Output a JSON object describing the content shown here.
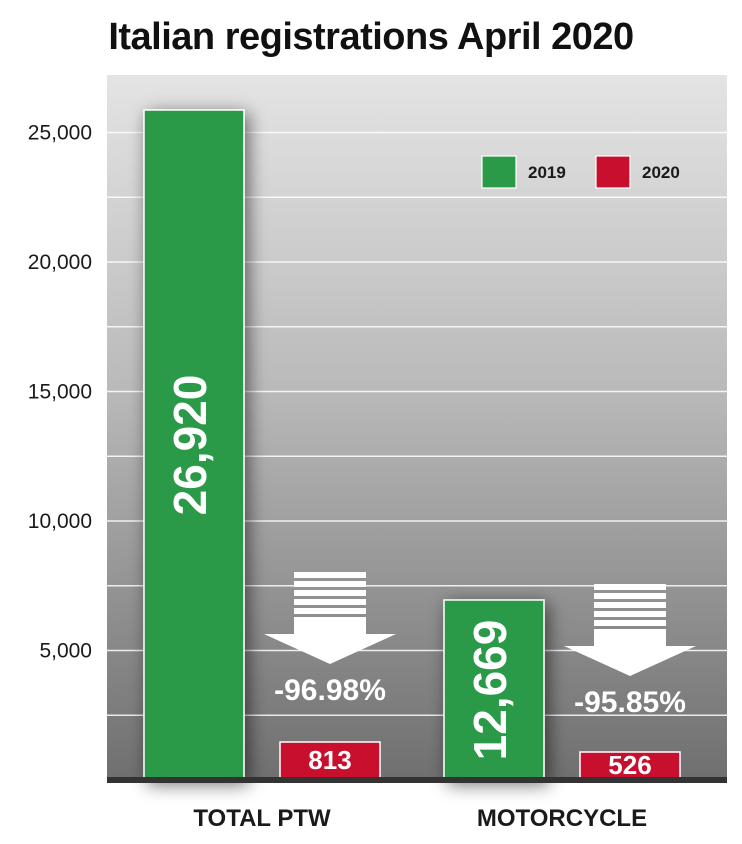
{
  "chart_data": {
    "type": "bar",
    "title": "Italian registrations April 2020",
    "categories": [
      "TOTAL PTW",
      "MOTORCYCLE"
    ],
    "series": [
      {
        "name": "2019",
        "color": "#2a9a49",
        "values": [
          26920,
          12669
        ],
        "labels": [
          "26,920",
          "12,669"
        ]
      },
      {
        "name": "2020",
        "color": "#c8102e",
        "values": [
          813,
          526
        ],
        "labels": [
          "813",
          "526"
        ]
      }
    ],
    "changes": [
      "-96.98%",
      "-95.85%"
    ],
    "y_ticks": [
      "5,000",
      "10,000",
      "15,000",
      "20,000",
      "25,000"
    ],
    "grid": true,
    "legend": "top-right"
  }
}
